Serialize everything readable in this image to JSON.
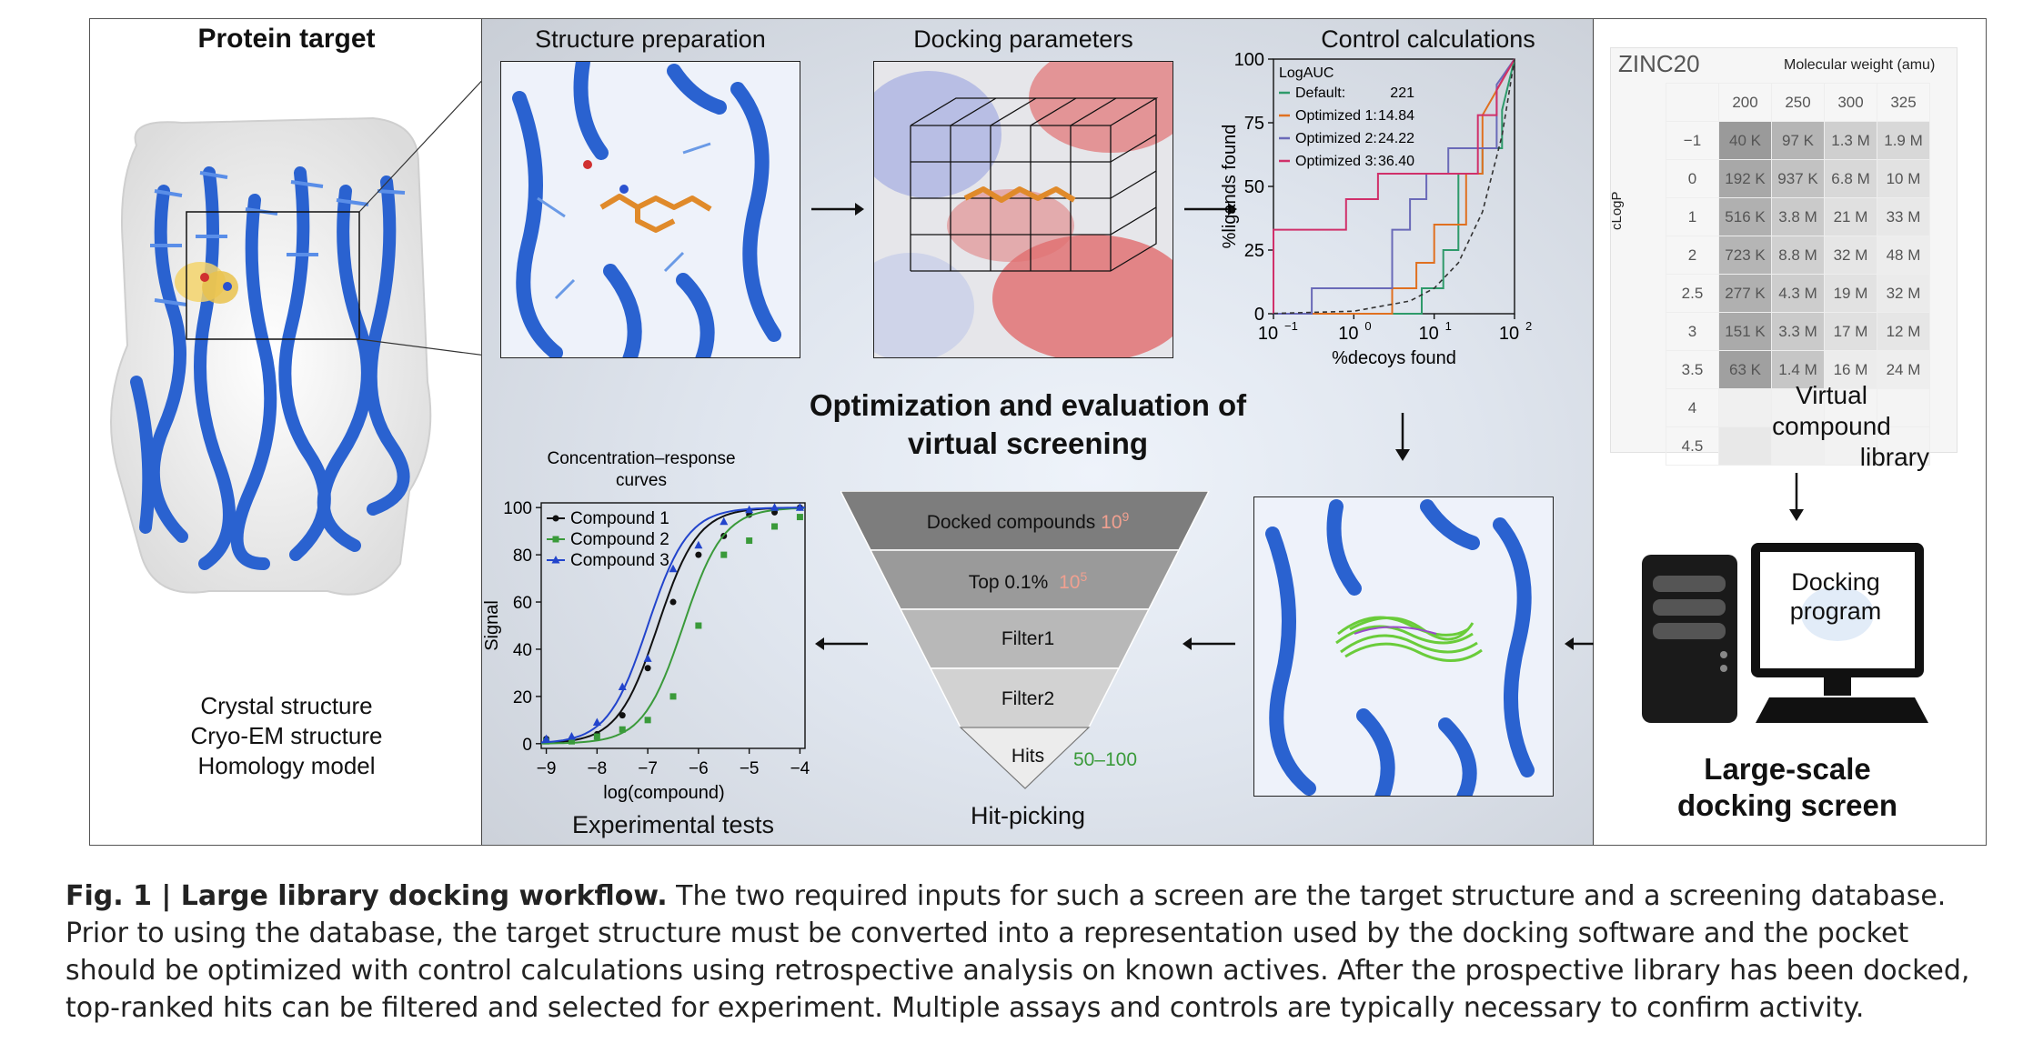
{
  "left_panel": {
    "title": "Protein target",
    "structure_types": [
      "Crystal structure",
      "Cryo-EM structure",
      "Homology model"
    ]
  },
  "middle_panel": {
    "structure_prep_title": "Structure preparation",
    "docking_params_title": "Docking parameters",
    "control_calc_title": "Control calculations",
    "central_title_line1": "Optimization and evaluation of",
    "central_title_line2": "virtual screening",
    "experimental_tests_label": "Experimental tests",
    "hit_picking_label": "Hit-picking",
    "funnel": [
      {
        "label": "Docked compounds",
        "count": "10",
        "exp": "9",
        "color": "#7d7d7d"
      },
      {
        "label": "Top 0.1%",
        "count": "10",
        "exp": "5",
        "color": "#9a9a9a"
      },
      {
        "label": "Filter1",
        "count": "",
        "exp": "",
        "color": "#b8b8b8"
      },
      {
        "label": "Filter2",
        "count": "",
        "exp": "",
        "color": "#d2d2d2"
      },
      {
        "label": "Hits",
        "count": "50–100",
        "exp": "",
        "color": "#ececec"
      }
    ]
  },
  "right_panel": {
    "zinc_title": "ZINC20",
    "mw_label": "Molecular weight (amu)",
    "mw_values": [
      "200",
      "250",
      "300",
      "325"
    ],
    "clogp_label": "cLogP",
    "clogp_values": [
      "−1",
      "0",
      "1",
      "2",
      "2.5",
      "3",
      "3.5",
      "4",
      "4.5"
    ],
    "cells": [
      [
        "40 K",
        "97 K",
        "1.3 M",
        "1.9 M"
      ],
      [
        "192 K",
        "937 K",
        "6.8 M",
        "10 M"
      ],
      [
        "516 K",
        "3.8 M",
        "21 M",
        "33 M"
      ],
      [
        "723 K",
        "8.8 M",
        "32 M",
        "48 M"
      ],
      [
        "277 K",
        "4.3 M",
        "19 M",
        "32 M"
      ],
      [
        "151 K",
        "3.3 M",
        "17 M",
        "12 M"
      ],
      [
        "63 K",
        "1.4 M",
        "16 M",
        "24 M"
      ]
    ],
    "library_label_line1": "Virtual compound",
    "library_label_line2": "library",
    "docking_program_line1": "Docking",
    "docking_program_line2": "program",
    "screen_label_line1": "Large-scale",
    "screen_label_line2": "docking screen"
  },
  "chart_data": [
    {
      "type": "line",
      "title": "",
      "xlabel": "%decoys found",
      "ylabel": "%ligands found",
      "x_scale": "log",
      "xlim": [
        0.1,
        100
      ],
      "ylim": [
        0,
        100
      ],
      "x_ticks": [
        "10",
        "10",
        "10",
        "10"
      ],
      "x_tick_exps": [
        "−1",
        "0",
        "1",
        "2"
      ],
      "y_ticks": [
        "0",
        "25",
        "50",
        "75",
        "100"
      ],
      "legend_title": "LogAUC",
      "legend": [
        {
          "name": "Default:",
          "value": "221",
          "color": "#2e9a6a"
        },
        {
          "name": "Optimized 1:",
          "value": "14.84",
          "color": "#e07020"
        },
        {
          "name": "Optimized 2:",
          "value": "24.22",
          "color": "#6a6ab8"
        },
        {
          "name": "Optimized 3:",
          "value": "36.40",
          "color": "#d0306a"
        }
      ],
      "series": [
        {
          "name": "Default",
          "color": "#2e9a6a",
          "x": [
            0.1,
            7,
            7,
            13,
            13,
            20,
            20,
            40,
            40,
            70,
            70,
            100
          ],
          "y": [
            0,
            0,
            10,
            10,
            25,
            25,
            55,
            55,
            65,
            65,
            80,
            100
          ]
        },
        {
          "name": "Optimized 1",
          "color": "#e07020",
          "x": [
            0.1,
            3,
            3,
            6,
            6,
            10,
            10,
            25,
            25,
            40,
            40,
            100
          ],
          "y": [
            0,
            0,
            10,
            10,
            20,
            20,
            35,
            35,
            55,
            55,
            78,
            100
          ]
        },
        {
          "name": "Optimized 2",
          "color": "#6a6ab8",
          "x": [
            0.1,
            0.3,
            0.3,
            3,
            3,
            5,
            5,
            8,
            8,
            15,
            15,
            60,
            60,
            100
          ],
          "y": [
            0,
            0,
            10,
            10,
            33,
            33,
            45,
            45,
            55,
            55,
            65,
            65,
            90,
            100
          ]
        },
        {
          "name": "Optimized 3",
          "color": "#d0306a",
          "x": [
            0.1,
            0.1,
            0.8,
            0.8,
            2,
            2,
            35,
            35,
            60,
            60,
            100
          ],
          "y": [
            0,
            33,
            33,
            45,
            45,
            55,
            55,
            78,
            78,
            88,
            100
          ]
        },
        {
          "name": "random",
          "color": "#333333",
          "dashed": true,
          "x": [
            0.1,
            1,
            5,
            10,
            20,
            40,
            70,
            100
          ],
          "y": [
            0.1,
            1,
            5,
            10,
            20,
            40,
            70,
            100
          ]
        }
      ]
    },
    {
      "type": "scatter",
      "title": "Concentration–response curves",
      "xlabel": "log(compound)",
      "ylabel": "Signal",
      "xlim": [
        -9.1,
        -3.9
      ],
      "ylim": [
        -2,
        102
      ],
      "x_ticks": [
        "−9",
        "−8",
        "−7",
        "−6",
        "−5",
        "−4"
      ],
      "y_ticks": [
        "0",
        "20",
        "40",
        "60",
        "80",
        "100"
      ],
      "series": [
        {
          "name": "Compound 1",
          "color": "#111111",
          "marker": "circle",
          "ec50": -6.8,
          "x": [
            -9,
            -8.5,
            -8,
            -7.5,
            -7,
            -6.5,
            -6,
            -5.5,
            -5,
            -4.5,
            -4
          ],
          "y": [
            2,
            2,
            4,
            12,
            32,
            60,
            80,
            88,
            97,
            98,
            100
          ]
        },
        {
          "name": "Compound 2",
          "color": "#3a9a3a",
          "marker": "square",
          "ec50": -6.3,
          "x": [
            -9,
            -8.5,
            -8,
            -7.5,
            -7,
            -6.5,
            -6,
            -5.5,
            -5,
            -4.5,
            -4
          ],
          "y": [
            1,
            1,
            3,
            6,
            10,
            20,
            50,
            80,
            86,
            92,
            96
          ]
        },
        {
          "name": "Compound 3",
          "color": "#2244cc",
          "marker": "triangle",
          "ec50": -7.0,
          "x": [
            -9,
            -8.5,
            -8,
            -7.5,
            -7,
            -6.5,
            -6,
            -5.5,
            -5,
            -4.5,
            -4
          ],
          "y": [
            2,
            3,
            9,
            24,
            36,
            74,
            84,
            94,
            99,
            100,
            100
          ]
        }
      ]
    }
  ],
  "caption": {
    "fig_label": "Fig. 1 | Large library docking workflow.",
    "text": " The two required inputs for such a screen are the target structure and a screening database. Prior to using the database, the target structure must be converted into a representation used by the docking software and the pocket should be optimized with control calculations using retrospective analysis on known actives. After the prospective library has been docked, top-ranked hits can be filtered and selected for experiment. Multiple assays and controls are typically necessary to confirm activity."
  }
}
